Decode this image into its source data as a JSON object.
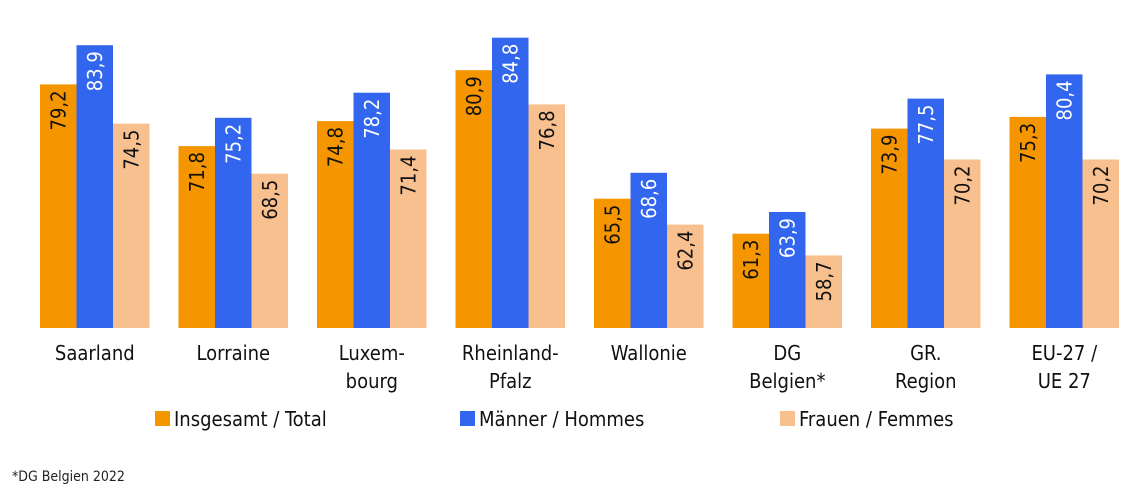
{
  "chart_data": {
    "type": "bar",
    "categories": [
      "Saarland",
      "Lorraine",
      "Luxem-\nbourg",
      "Rheinland-\nPfalz",
      "Wallonie",
      "DG\nBelgien*",
      "GR.\nRegion",
      "EU-27 /\nUE 27"
    ],
    "series": [
      {
        "name": "Insgesamt / Total",
        "color": "#F59500",
        "values": [
          79.2,
          71.8,
          74.8,
          80.9,
          65.5,
          61.3,
          73.9,
          75.3
        ],
        "labels": [
          "79,2",
          "71,8",
          "74,8",
          "80,9",
          "65,5",
          "61,3",
          "73,9",
          "75,3"
        ],
        "label_color": "#111111"
      },
      {
        "name": "Männer / Hommes",
        "color": "#3366EE",
        "values": [
          83.9,
          75.2,
          78.2,
          84.8,
          68.6,
          63.9,
          77.5,
          80.4
        ],
        "labels": [
          "83,9",
          "75,2",
          "78,2",
          "84,8",
          "68,6",
          "63,9",
          "77,5",
          "80,4"
        ],
        "label_color": "#ffffff"
      },
      {
        "name": "Frauen / Femmes",
        "color": "#F7C08E",
        "values": [
          74.5,
          68.5,
          71.4,
          76.8,
          62.4,
          58.7,
          70.2,
          70.2
        ],
        "labels": [
          "74,5",
          "68,5",
          "71,4",
          "76,8",
          "62,4",
          "58,7",
          "70,2",
          "70,2"
        ],
        "label_color": "#111111"
      }
    ],
    "ylim": [
      50,
      86.2
    ],
    "grid": false,
    "legend": "bottom"
  },
  "footnote": "*DG Belgien 2022"
}
